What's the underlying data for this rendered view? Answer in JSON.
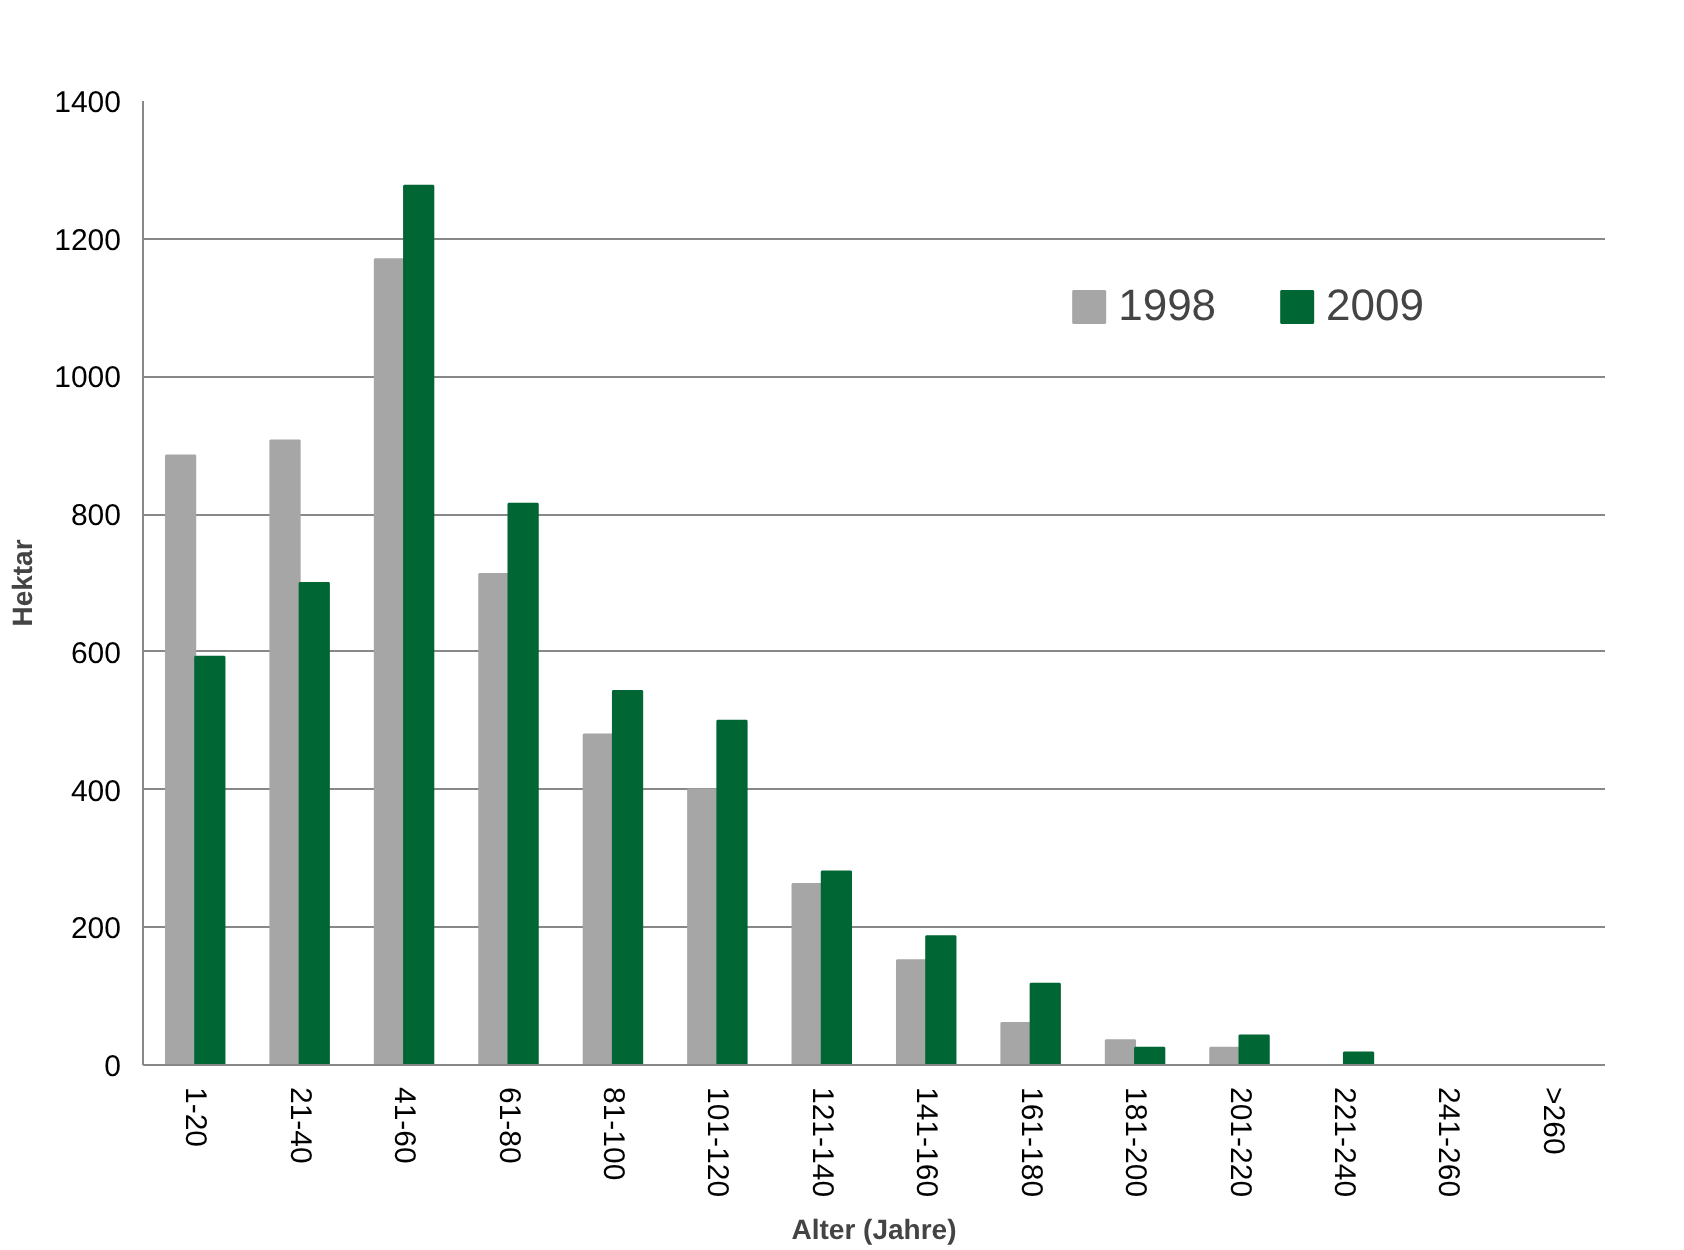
{
  "chart_data": {
    "type": "bar",
    "xlabel": "Alter (Jahre)",
    "ylabel": "Hektar",
    "categories": [
      "1-20",
      "21-40",
      "41-60",
      "61-80",
      "81-100",
      "101-120",
      "121-140",
      "141-160",
      "161-180",
      "181-200",
      "201-220",
      "221-240",
      "241-260",
      ">260"
    ],
    "series": [
      {
        "name": "1998",
        "color": "#a6a6a6",
        "values": [
          885,
          907,
          1170,
          713,
          480,
          400,
          263,
          152,
          61,
          36,
          25,
          0,
          0,
          0
        ]
      },
      {
        "name": "2009",
        "color": "#006633",
        "values": [
          593,
          700,
          1277,
          815,
          543,
          500,
          281,
          187,
          118,
          25,
          43,
          18,
          0,
          0
        ]
      }
    ],
    "ylim": [
      0,
      1400
    ],
    "yticks": [
      0,
      200,
      400,
      600,
      800,
      1000,
      1200,
      1400
    ],
    "grid": "y",
    "legend": "top right"
  }
}
